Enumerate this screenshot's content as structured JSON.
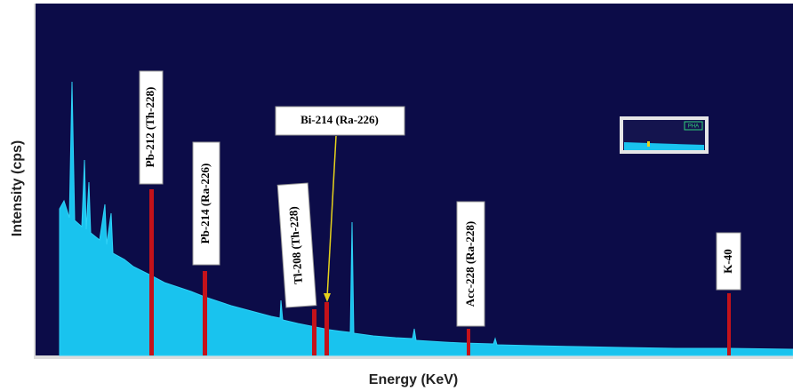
{
  "x_label": "Energy (KeV)",
  "y_label": "Intensity (cps)",
  "peaks": [
    {
      "label": "Pb-212 (Th-228)"
    },
    {
      "label": "Pb-214 (Ra-226)"
    },
    {
      "label": "Tl-208 (Th-228)"
    },
    {
      "label": "Bi-214 (Ra-226)"
    },
    {
      "label": "Acc-228 (Ra-228)"
    },
    {
      "label": "K-40"
    }
  ],
  "inset": {
    "label": "PHA"
  }
}
